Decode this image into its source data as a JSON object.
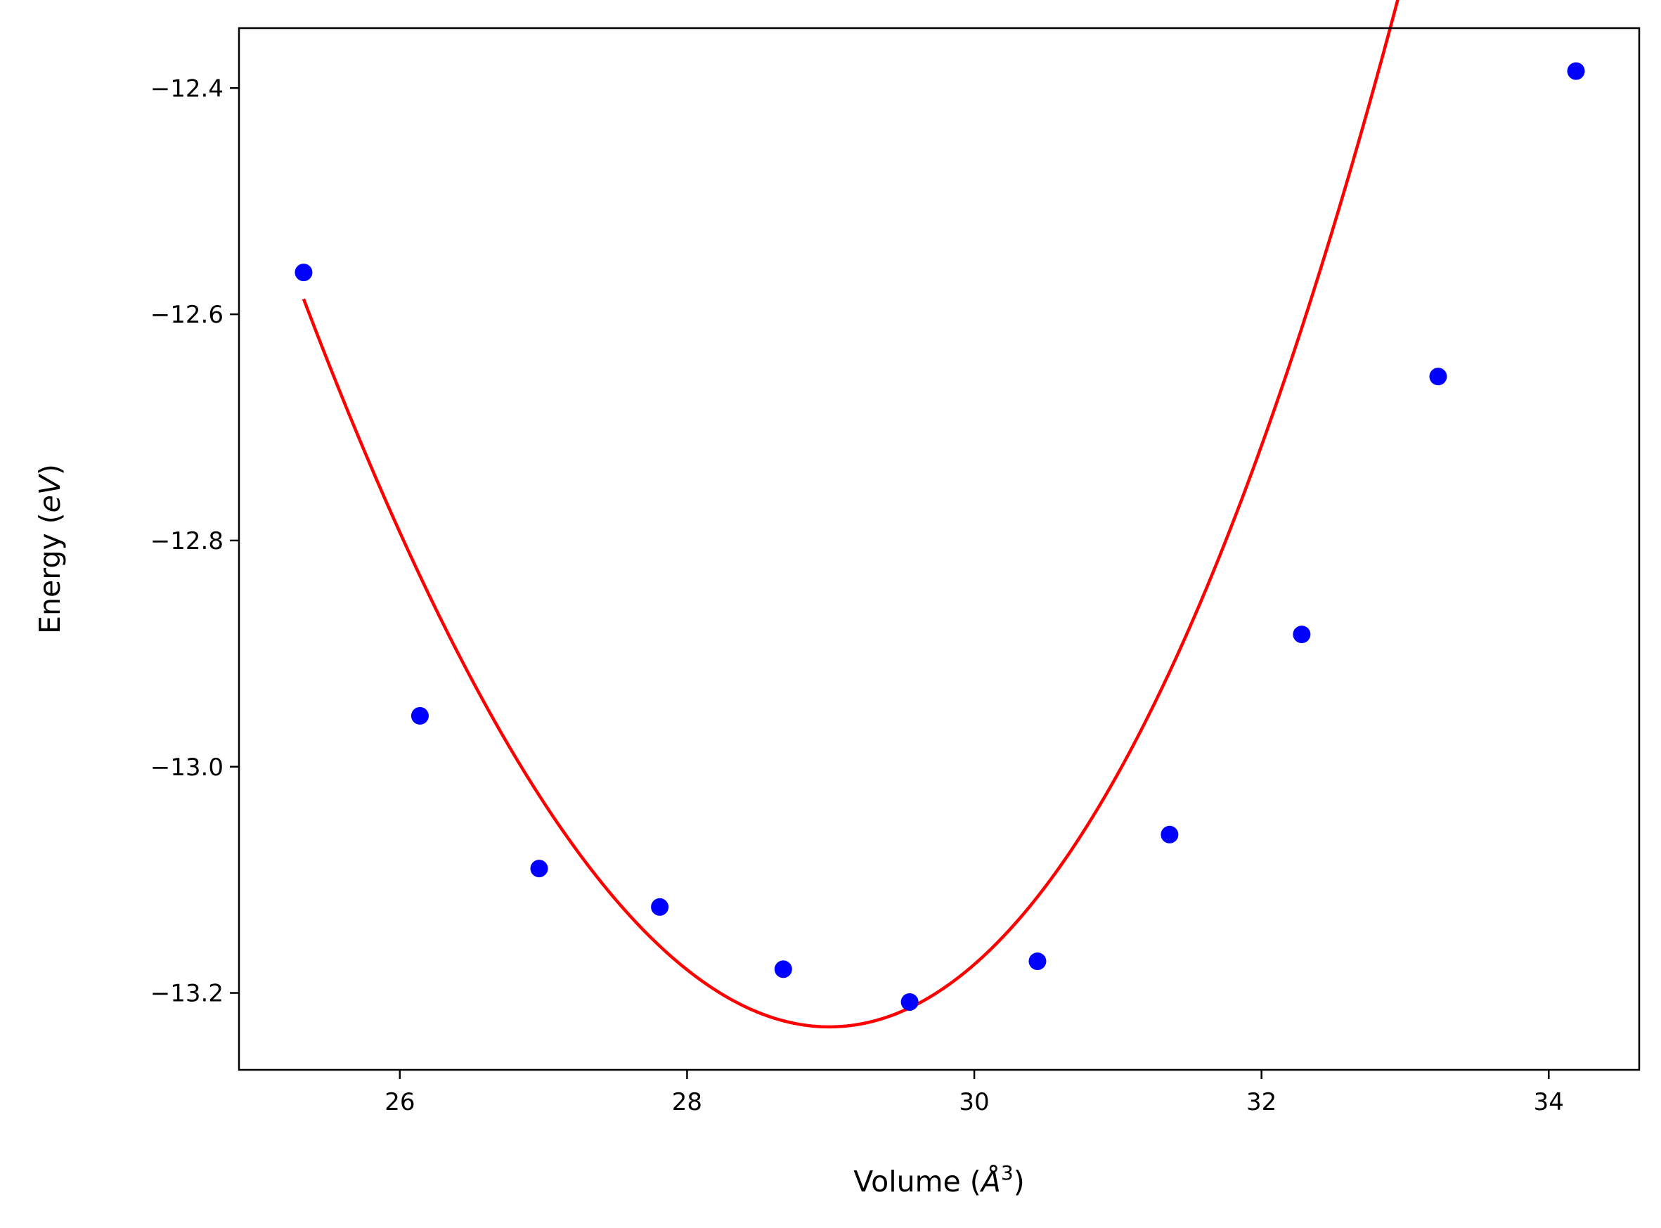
{
  "chart_data": {
    "type": "scatter",
    "title": "",
    "xlabel": "Volume (Å³)",
    "ylabel": "Energy (eV)",
    "xlabel_parts": {
      "prefix": "Volume (",
      "symbol": "Å",
      "exponent": "3",
      "suffix": ")"
    },
    "ylabel_parts": {
      "prefix": "Energy (",
      "italic": "eV",
      "suffix": ")"
    },
    "xlim": [
      24.88,
      34.63
    ],
    "ylim": [
      -13.268,
      -12.347
    ],
    "x_ticks": [
      26,
      28,
      30,
      32,
      34
    ],
    "x_tick_labels": [
      "26",
      "28",
      "30",
      "32",
      "34"
    ],
    "y_ticks": [
      -12.4,
      -12.6,
      -12.8,
      -13.0,
      -13.2
    ],
    "y_tick_labels": [
      "−12.4",
      "−12.6",
      "−12.8",
      "−13.0",
      "−13.2"
    ],
    "grid": false,
    "series": [
      {
        "kind": "points",
        "color": "#0000ff",
        "x": [
          25.33,
          26.14,
          26.97,
          27.81,
          28.67,
          29.55,
          30.44,
          31.36,
          32.28,
          33.23,
          34.19
        ],
        "y": [
          -12.563,
          -12.955,
          -13.09,
          -13.124,
          -13.179,
          -13.208,
          -13.172,
          -13.06,
          -12.883,
          -12.655,
          -12.385
        ]
      },
      {
        "kind": "fit-curve",
        "color": "#ff0000",
        "x_range": [
          25.33,
          34.19
        ],
        "x_min": 28.99,
        "y_min": -13.23,
        "curvature": 0.0528,
        "cubic": 0.0013
      }
    ]
  }
}
